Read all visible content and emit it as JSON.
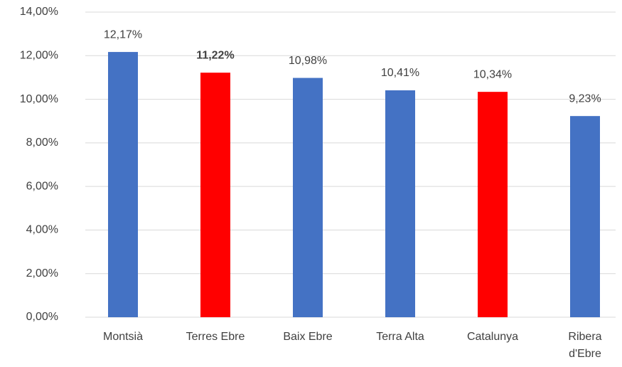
{
  "chart_data": {
    "type": "bar",
    "categories": [
      "Montsià",
      "Terres Ebre",
      "Baix Ebre",
      "Terra Alta",
      "Catalunya",
      "Ribera\nd'Ebre"
    ],
    "values": [
      12.17,
      11.22,
      10.98,
      10.41,
      10.34,
      9.23
    ],
    "value_labels": [
      "12,17%",
      "11,22%",
      "10,98%",
      "10,41%",
      "10,34%",
      "9,23%"
    ],
    "value_label_bold": [
      false,
      true,
      false,
      false,
      false,
      false
    ],
    "colors": [
      "#4472c4",
      "#ff0000",
      "#4472c4",
      "#4472c4",
      "#ff0000",
      "#4472c4"
    ],
    "ylim": [
      0,
      14
    ],
    "yticks": [
      {
        "value": 0,
        "label": "0,00%"
      },
      {
        "value": 2,
        "label": "2,00%"
      },
      {
        "value": 4,
        "label": "4,00%"
      },
      {
        "value": 6,
        "label": "6,00%"
      },
      {
        "value": 8,
        "label": "8,00%"
      },
      {
        "value": 10,
        "label": "10,00%"
      },
      {
        "value": 12,
        "label": "12,00%"
      },
      {
        "value": 14,
        "label": "14,00%"
      }
    ],
    "grid": true
  }
}
